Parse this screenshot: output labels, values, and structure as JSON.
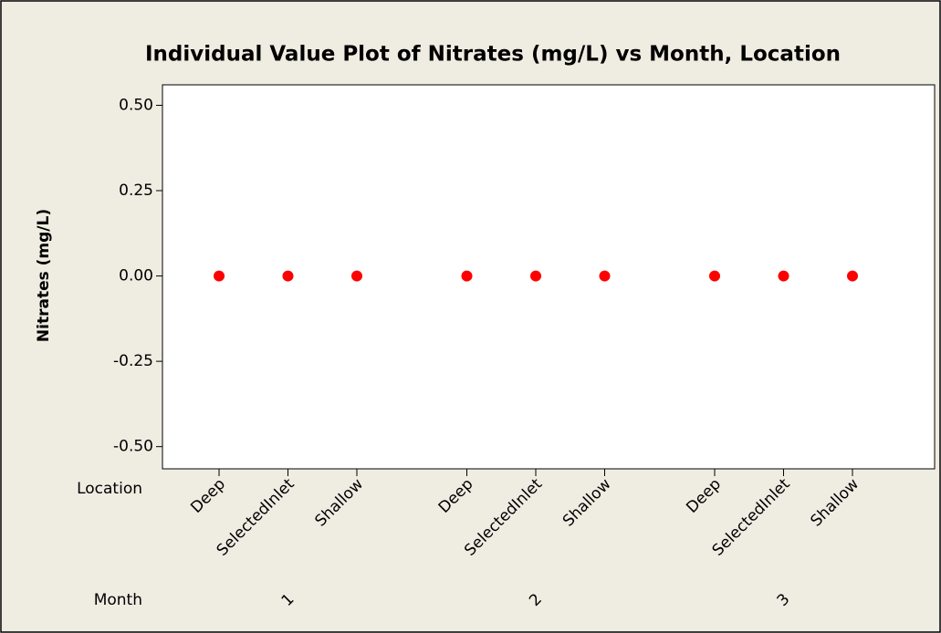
{
  "chart_data": {
    "type": "individual_value",
    "title": "Individual Value Plot of Nitrates (mg/L) vs Month, Location",
    "ylabel": "Nitrates (mg/L)",
    "inner_axis_label": "Location",
    "outer_axis_label": "Month",
    "groups": [
      "1",
      "2",
      "3"
    ],
    "categories": [
      "Deep",
      "SelectedInlet",
      "Shallow",
      "Deep",
      "SelectedInlet",
      "Shallow",
      "Deep",
      "SelectedInlet",
      "Shallow"
    ],
    "values": [
      0,
      0,
      0,
      0,
      0,
      0,
      0,
      0,
      0
    ],
    "color": "#ff0000",
    "ylim": [
      -0.565,
      0.56
    ],
    "yticks": [
      {
        "value": 0.5,
        "label": "0.50"
      },
      {
        "value": 0.25,
        "label": "0.25"
      },
      {
        "value": 0,
        "label": "0.00"
      },
      {
        "value": -0.25,
        "label": "-0.25"
      },
      {
        "value": -0.5,
        "label": "-0.50"
      }
    ]
  }
}
